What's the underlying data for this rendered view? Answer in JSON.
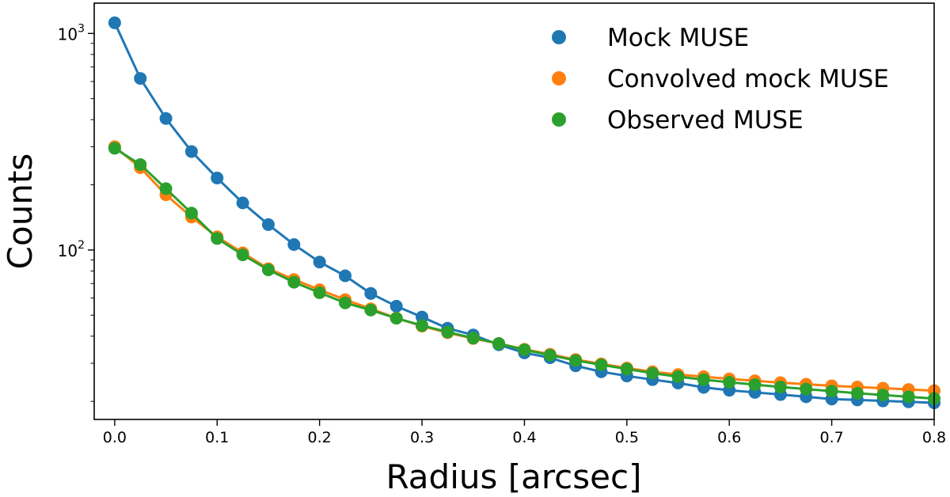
{
  "chart_data": {
    "type": "line",
    "title": "",
    "xlabel": "Radius [arcsec]",
    "ylabel": "Counts",
    "xlim": [
      -0.02,
      0.8
    ],
    "ylim": [
      16.5,
      1380
    ],
    "yscale": "log",
    "x_ticks": [
      0.0,
      0.1,
      0.2,
      0.3,
      0.4,
      0.5,
      0.6,
      0.7,
      0.8
    ],
    "x_tick_labels": [
      "0.0",
      "0.1",
      "0.2",
      "0.3",
      "0.4",
      "0.5",
      "0.6",
      "0.7",
      "0.8"
    ],
    "y_major_ticks": [
      100,
      1000
    ],
    "y_tick_labels": [
      {
        "base": "10",
        "exp": "2"
      },
      {
        "base": "10",
        "exp": "3"
      }
    ],
    "grid": false,
    "legend_position": "top-right",
    "x": [
      0.0,
      0.025,
      0.05,
      0.075,
      0.1,
      0.125,
      0.15,
      0.175,
      0.2,
      0.225,
      0.25,
      0.275,
      0.3,
      0.325,
      0.35,
      0.375,
      0.4,
      0.425,
      0.45,
      0.475,
      0.5,
      0.525,
      0.55,
      0.575,
      0.6,
      0.625,
      0.65,
      0.675,
      0.7,
      0.725,
      0.75,
      0.775,
      0.8
    ],
    "series": [
      {
        "name": "Mock MUSE",
        "color": "#1f77b4",
        "values": [
          1120,
          620,
          405,
          285,
          215,
          165,
          131,
          106,
          88,
          76,
          63,
          55,
          49,
          43.5,
          40.5,
          36.5,
          33.5,
          31.8,
          29.2,
          27.4,
          26.2,
          25.2,
          24.3,
          23.2,
          22.5,
          22,
          21.5,
          21,
          20.5,
          20.3,
          20.1,
          19.9,
          19.7
        ]
      },
      {
        "name": "Convolved mock MUSE",
        "color": "#ff7f0e",
        "values": [
          300,
          240,
          180,
          142,
          115,
          97,
          82,
          73,
          65.5,
          59,
          53.5,
          48.5,
          44.5,
          41.5,
          39,
          37,
          34.8,
          33,
          31.2,
          29.8,
          28.5,
          27.4,
          26.6,
          26,
          25.4,
          24.9,
          24.4,
          24,
          23.6,
          23.3,
          23,
          22.7,
          22.4
        ]
      },
      {
        "name": "Observed MUSE",
        "color": "#2ca02c",
        "values": [
          295,
          248,
          192,
          148,
          113,
          95,
          81,
          71,
          63.5,
          57,
          52.8,
          48.4,
          44.8,
          41.8,
          39.2,
          37,
          34.6,
          32.7,
          30.9,
          29.5,
          28.2,
          27,
          26,
          25.2,
          24.5,
          23.9,
          23.3,
          22.8,
          22.3,
          21.8,
          21.4,
          21,
          20.6
        ]
      }
    ]
  }
}
